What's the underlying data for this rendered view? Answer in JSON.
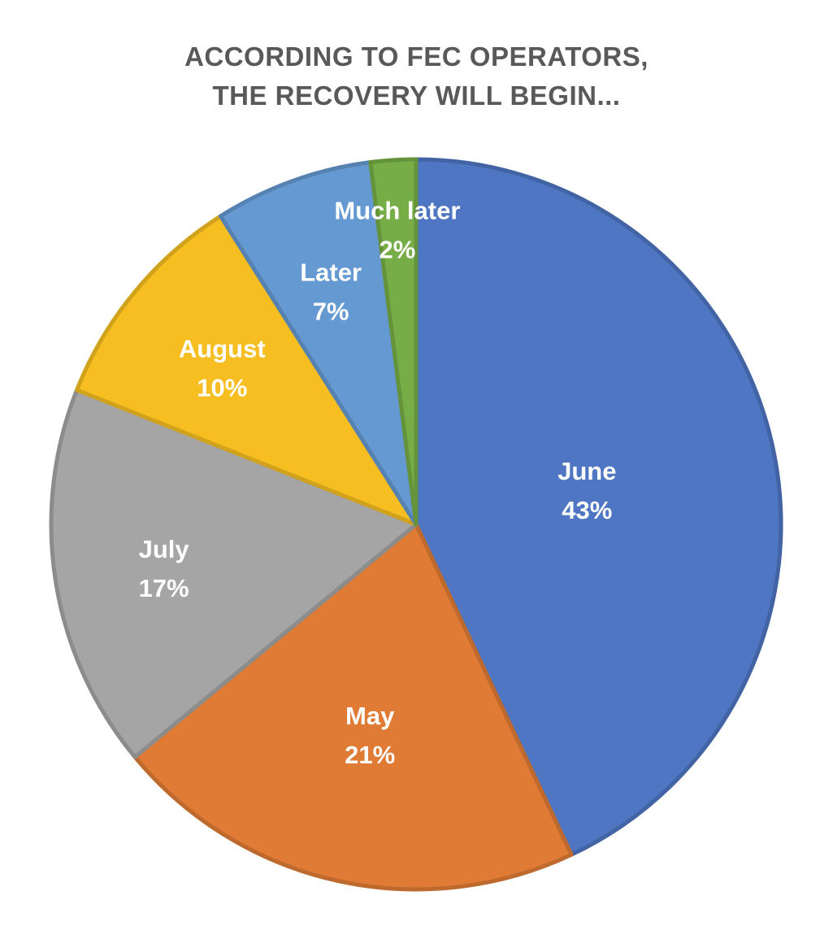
{
  "chart_data": {
    "type": "pie",
    "title": {
      "line1": "ACCORDING TO FEC OPERATORS,",
      "line2": "THE RECOVERY WILL BEGIN..."
    },
    "slices": [
      {
        "label": "June",
        "value": 43,
        "display": "43%",
        "color": "#4E76C2"
      },
      {
        "label": "May",
        "value": 21,
        "display": "21%",
        "color": "#E07B35"
      },
      {
        "label": "July",
        "value": 17,
        "display": "17%",
        "color": "#A5A5A5"
      },
      {
        "label": "August",
        "value": 10,
        "display": "10%",
        "color": "#F6BE20"
      },
      {
        "label": "Later",
        "value": 7,
        "display": "7%",
        "color": "#6599D1"
      },
      {
        "label": "Much later",
        "value": 2,
        "display": "2%",
        "color": "#76AD46"
      }
    ],
    "start": "12 o'clock",
    "direction": "clockwise",
    "legend": "none",
    "data_labels": "inside"
  }
}
